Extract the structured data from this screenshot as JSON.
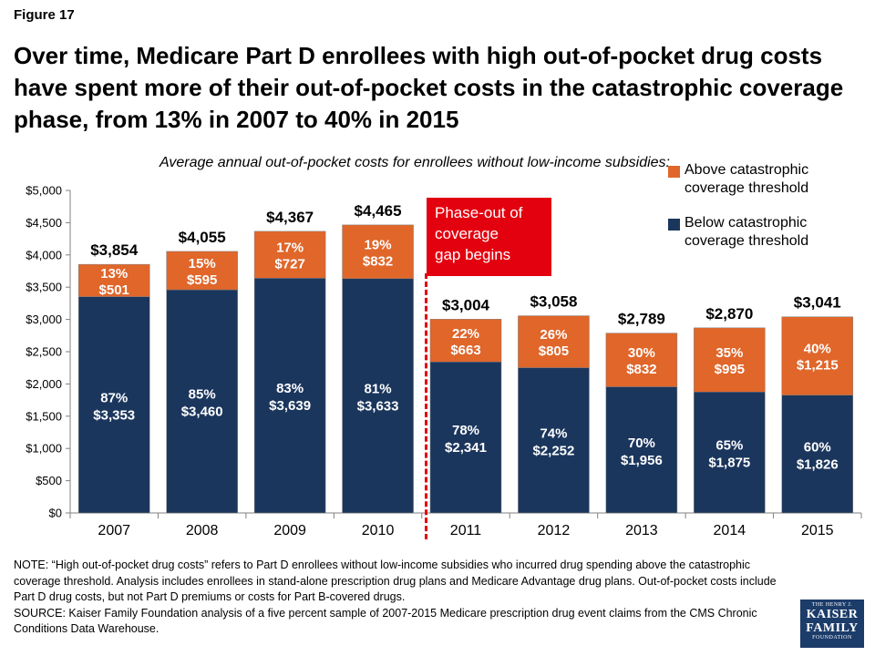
{
  "figure_label": "Figure 17",
  "colors": {
    "above": "#e0662a",
    "below": "#1b365d",
    "phase": "#e3000f"
  },
  "chart_data": {
    "type": "bar",
    "stacked": true,
    "title": "Over time, Medicare Part D enrollees with high out-of-pocket drug costs have spent more of their out-of-pocket costs in the catastrophic coverage phase, from 13% in 2007 to 40% in 2015",
    "subtitle": "Average annual out-of-pocket costs for enrollees without low-income subsidies:",
    "categories": [
      "2007",
      "2008",
      "2009",
      "2010",
      "2011",
      "2012",
      "2013",
      "2014",
      "2015"
    ],
    "series": [
      {
        "name": "Below catastrophic coverage threshold",
        "values": [
          3353,
          3460,
          3639,
          3633,
          2341,
          2252,
          1956,
          1875,
          1826
        ],
        "labels": [
          "$3,353",
          "$3,460",
          "$3,639",
          "$3,633",
          "$2,341",
          "$2,252",
          "$1,956",
          "$1,875",
          "$1,826"
        ],
        "percents": [
          "87%",
          "85%",
          "83%",
          "81%",
          "78%",
          "74%",
          "70%",
          "65%",
          "60%"
        ]
      },
      {
        "name": "Above catastrophic coverage threshold",
        "values": [
          501,
          595,
          727,
          832,
          663,
          805,
          832,
          995,
          1215
        ],
        "labels": [
          "$501",
          "$595",
          "$727",
          "$832",
          "$663",
          "$805",
          "$832",
          "$995",
          "$1,215"
        ],
        "percents": [
          "13%",
          "15%",
          "17%",
          "19%",
          "22%",
          "26%",
          "30%",
          "35%",
          "40%"
        ]
      }
    ],
    "totals": [
      "$3,854",
      "$4,055",
      "$4,367",
      "$4,465",
      "$3,004",
      "$3,058",
      "$2,789",
      "$2,870",
      "$3,041"
    ],
    "ylim": [
      0,
      5000
    ],
    "yticks": [
      0,
      500,
      1000,
      1500,
      2000,
      2500,
      3000,
      3500,
      4000,
      4500,
      5000
    ],
    "ytick_labels": [
      "$0",
      "$500",
      "$1,000",
      "$1,500",
      "$2,000",
      "$2,500",
      "$3,000",
      "$3,500",
      "$4,000",
      "$4,500",
      "$5,000"
    ],
    "grid": false,
    "legend_position": "top-right",
    "annotation": {
      "lines": [
        "Phase-out of",
        "coverage",
        "gap begins"
      ],
      "between": [
        "2010",
        "2011"
      ]
    }
  },
  "legend": [
    {
      "lines": [
        "Above catastrophic",
        "coverage threshold"
      ],
      "color": "#e0662a"
    },
    {
      "lines": [
        "Below catastrophic",
        "coverage threshold"
      ],
      "color": "#1b365d"
    }
  ],
  "note": "NOTE: “High out-of-pocket drug costs” refers to Part D enrollees without low-income subsidies who incurred drug spending above the catastrophic coverage threshold. Analysis includes enrollees in stand-alone prescription drug plans and Medicare Advantage drug plans. Out-of-pocket costs include Part D drug costs, but not Part D premiums or costs for Part B-covered drugs.",
  "source": "SOURCE: Kaiser Family Foundation analysis of a five percent sample of 2007-2015 Medicare prescription drug event claims from the CMS Chronic Conditions Data Warehouse.",
  "logo": {
    "line1": "THE HENRY J.",
    "line2": "KAISER",
    "line3": "FAMILY",
    "line4": "FOUNDATION"
  }
}
